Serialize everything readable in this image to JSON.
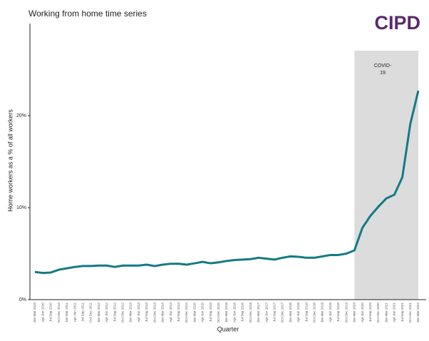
{
  "chart_data": {
    "type": "line",
    "title": "Working from home time series",
    "logo": "CIPD",
    "x_label": "Quarter",
    "y_label": "Home workers as a % of all workers",
    "annotation": "COVID-19",
    "shaded_region": [
      "Jan-Mar 2020",
      "Jan-Mar 2022"
    ],
    "categories": [
      "Jan-Mar 2010",
      "Apr-Jun 2010",
      "Jul-Sep 2010",
      "Oct-Dec 2010",
      "Jan-Mar 2011",
      "Apr-Jun 2011",
      "Jul-Sep 2011",
      "Oct-Dec 2011",
      "Jan-Mar 2012",
      "Apr-Jun 2012",
      "Jul-Sep 2012",
      "Oct-Dec 2012",
      "Jan-Mar 2013",
      "Apr-Jun 2013",
      "Jul-Sep 2013",
      "Oct-Dec 2013",
      "Jan-Mar 2014",
      "Apr-Jun 2014",
      "Jul-Sep 2014",
      "Oct-Dec 2014",
      "Jan-Mar 2015",
      "Apr-Jun 2015",
      "Jul-Sep 2015",
      "Oct-Dec 2015",
      "Jan-Mar 2016",
      "Apr-Jun 2016",
      "Jul-Sep 2016",
      "Oct-Dec 2016",
      "Jan-Mar 2017",
      "Apr-Jun 2017",
      "Jul-Sep 2017",
      "Oct-Dec 2017",
      "Jan-Mar 2018",
      "Apr-Jun 2018",
      "Jul-Sep 2018",
      "Oct-Dec 2018",
      "Jan-Mar 2019",
      "Apr-Jun 2019",
      "Jul-Sep 2019",
      "Oct-Dec 2019",
      "Jan-Mar 2020",
      "Apr-Jun 2020",
      "Jul-Sep 2020",
      "Oct-Dec 2020",
      "Jan-Mar 2021",
      "Apr-Jun 2021",
      "Jul-Sep 2021",
      "Oct-Dec 2021",
      "Jan-Mar 2022"
    ],
    "values": [
      3.0,
      2.9,
      2.95,
      3.25,
      3.4,
      3.55,
      3.65,
      3.65,
      3.7,
      3.7,
      3.55,
      3.7,
      3.7,
      3.7,
      3.8,
      3.65,
      3.8,
      3.9,
      3.9,
      3.8,
      3.95,
      4.1,
      3.95,
      4.05,
      4.2,
      4.3,
      4.35,
      4.4,
      4.55,
      4.45,
      4.35,
      4.55,
      4.7,
      4.65,
      4.55,
      4.55,
      4.7,
      4.85,
      4.85,
      5.0,
      5.35,
      7.8,
      9.1,
      10.1,
      11.0,
      11.4,
      13.3,
      19.1,
      22.7
    ],
    "color": "#147a85",
    "ylim": [
      0,
      30
    ],
    "yticks": [
      {
        "value": 0,
        "label": "0%"
      },
      {
        "value": 10,
        "label": "10%"
      },
      {
        "value": 20,
        "label": "20%"
      }
    ]
  }
}
